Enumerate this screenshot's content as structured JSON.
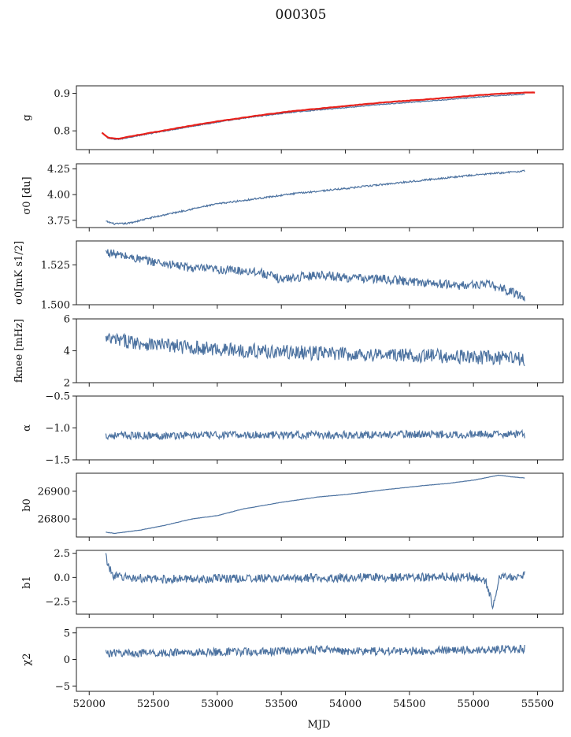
{
  "title": "000305",
  "xlabel": "MJD",
  "colors": {
    "series": "#4c72a0",
    "overlay": "#e8211b",
    "frame": "#222222"
  },
  "chart_data": [
    {
      "type": "line",
      "key": "g",
      "ylabel": "g",
      "xlim": [
        51900,
        55700
      ],
      "ylim": [
        0.75,
        0.92
      ],
      "yticks": [
        0.8,
        0.9
      ],
      "ytick_labels": [
        "0.8",
        "0.9"
      ],
      "series": [
        {
          "style": "line",
          "x": [
            52100,
            52150,
            52200,
            52250,
            52300,
            52500,
            52800,
            53000,
            53300,
            53600,
            54000,
            54300,
            54600,
            55000,
            55200,
            55400
          ],
          "y": [
            0.795,
            0.78,
            0.777,
            0.778,
            0.782,
            0.794,
            0.812,
            0.823,
            0.838,
            0.85,
            0.862,
            0.871,
            0.878,
            0.889,
            0.894,
            0.898
          ]
        },
        {
          "style": "overlay",
          "x": [
            52100,
            52150,
            52200,
            52250,
            52300,
            52500,
            52800,
            53000,
            53300,
            53600,
            54000,
            54300,
            54600,
            55000,
            55200,
            55400,
            55480
          ],
          "y": [
            0.795,
            0.782,
            0.779,
            0.78,
            0.784,
            0.796,
            0.814,
            0.825,
            0.84,
            0.853,
            0.866,
            0.876,
            0.883,
            0.894,
            0.899,
            0.902,
            0.902
          ]
        }
      ]
    },
    {
      "type": "line",
      "key": "sigma0",
      "ylabel": "σ0 [du]",
      "xlim": [
        51900,
        55700
      ],
      "ylim": [
        3.68,
        4.3
      ],
      "yticks": [
        3.75,
        4.0,
        4.25
      ],
      "ytick_labels": [
        "3.75",
        "4.00",
        "4.25"
      ],
      "series": [
        {
          "style": "line",
          "x": [
            52130,
            52200,
            52300,
            52500,
            52800,
            53000,
            53300,
            53600,
            54000,
            54300,
            54600,
            55000,
            55400
          ],
          "y": [
            3.74,
            3.715,
            3.72,
            3.78,
            3.86,
            3.91,
            3.96,
            4.01,
            4.06,
            4.1,
            4.14,
            4.19,
            4.23
          ]
        }
      ]
    },
    {
      "type": "line",
      "key": "sigma0_nefd",
      "ylabel": "σ0[mK s1/2]",
      "xlim": [
        51900,
        55700
      ],
      "ylim": [
        1.5,
        1.54
      ],
      "yticks": [
        1.5,
        1.525
      ],
      "ytick_labels": [
        "1.500",
        "1.525"
      ],
      "series": [
        {
          "style": "line",
          "x": [
            52130,
            52300,
            52500,
            52800,
            53000,
            53300,
            53500,
            53800,
            54000,
            54300,
            54600,
            54900,
            55100,
            55300,
            55400
          ],
          "y": [
            1.533,
            1.53,
            1.527,
            1.523,
            1.522,
            1.521,
            1.516,
            1.519,
            1.517,
            1.516,
            1.514,
            1.512,
            1.513,
            1.508,
            1.505
          ]
        }
      ]
    },
    {
      "type": "line",
      "key": "fknee",
      "ylabel": "fknee [mHz]",
      "xlim": [
        51900,
        55700
      ],
      "ylim": [
        2,
        6
      ],
      "yticks": [
        2,
        4,
        6
      ],
      "ytick_labels": [
        "2",
        "4",
        "6"
      ],
      "series": [
        {
          "style": "line",
          "x": [
            52130,
            52300,
            52500,
            52800,
            53000,
            53300,
            53600,
            54000,
            54300,
            54600,
            55000,
            55400
          ],
          "y": [
            4.7,
            4.6,
            4.4,
            4.2,
            4.1,
            4.0,
            3.9,
            3.8,
            3.75,
            3.7,
            3.6,
            3.5
          ]
        }
      ]
    },
    {
      "type": "line",
      "key": "alpha",
      "ylabel": "α",
      "xlim": [
        51900,
        55700
      ],
      "ylim": [
        -1.5,
        -0.5
      ],
      "yticks": [
        -1.5,
        -1.0,
        -0.5
      ],
      "ytick_labels": [
        "−1.5",
        "−1.0",
        "−0.5"
      ],
      "series": [
        {
          "style": "line",
          "x": [
            52130,
            52500,
            53000,
            53500,
            54000,
            54500,
            55000,
            55400
          ],
          "y": [
            -1.12,
            -1.12,
            -1.11,
            -1.11,
            -1.11,
            -1.1,
            -1.1,
            -1.1
          ]
        }
      ]
    },
    {
      "type": "line",
      "key": "b0",
      "ylabel": "b0",
      "xlim": [
        51900,
        55700
      ],
      "ylim": [
        26735,
        26965
      ],
      "yticks": [
        26800,
        26900
      ],
      "ytick_labels": [
        "26800",
        "26900"
      ],
      "series": [
        {
          "style": "line",
          "x": [
            52130,
            52200,
            52400,
            52600,
            52800,
            53000,
            53200,
            53500,
            53800,
            54000,
            54300,
            54600,
            54800,
            55000,
            55200,
            55300,
            55400
          ],
          "y": [
            26752,
            26748,
            26760,
            26778,
            26800,
            26812,
            26836,
            26860,
            26880,
            26888,
            26905,
            26920,
            26928,
            26940,
            26958,
            26952,
            26948
          ]
        }
      ]
    },
    {
      "type": "line",
      "key": "b1",
      "ylabel": "b1",
      "xlim": [
        51900,
        55700
      ],
      "ylim": [
        -3.8,
        2.8
      ],
      "yticks": [
        -2.5,
        0.0,
        2.5
      ],
      "ytick_labels": [
        "−2.5",
        "0.0",
        "2.5"
      ],
      "series": [
        {
          "style": "line",
          "x": [
            52130,
            52160,
            52200,
            52500,
            53000,
            53500,
            54000,
            54500,
            55000,
            55100,
            55150,
            55200,
            55400
          ],
          "y": [
            2.2,
            0.8,
            0.1,
            -0.2,
            -0.1,
            -0.1,
            0.0,
            0.0,
            0.1,
            -0.5,
            -3.0,
            0.0,
            0.2
          ]
        }
      ]
    },
    {
      "type": "line",
      "key": "chi2",
      "ylabel": "χ2",
      "xlim": [
        51900,
        55700
      ],
      "ylim": [
        -6,
        6
      ],
      "yticks": [
        -5,
        0,
        5
      ],
      "ytick_labels": [
        "−5",
        "0",
        "5"
      ],
      "series": [
        {
          "style": "line",
          "x": [
            52130,
            52500,
            53000,
            53500,
            53900,
            54000,
            54500,
            55000,
            55400
          ],
          "y": [
            1.2,
            1.2,
            1.4,
            1.5,
            2.0,
            1.5,
            1.6,
            1.8,
            2.0
          ]
        }
      ]
    }
  ],
  "xticks": [
    52000,
    52500,
    53000,
    53500,
    54000,
    54500,
    55000,
    55500
  ],
  "xtick_labels": [
    "52000",
    "52500",
    "53000",
    "53500",
    "54000",
    "54500",
    "55000",
    "55500"
  ]
}
